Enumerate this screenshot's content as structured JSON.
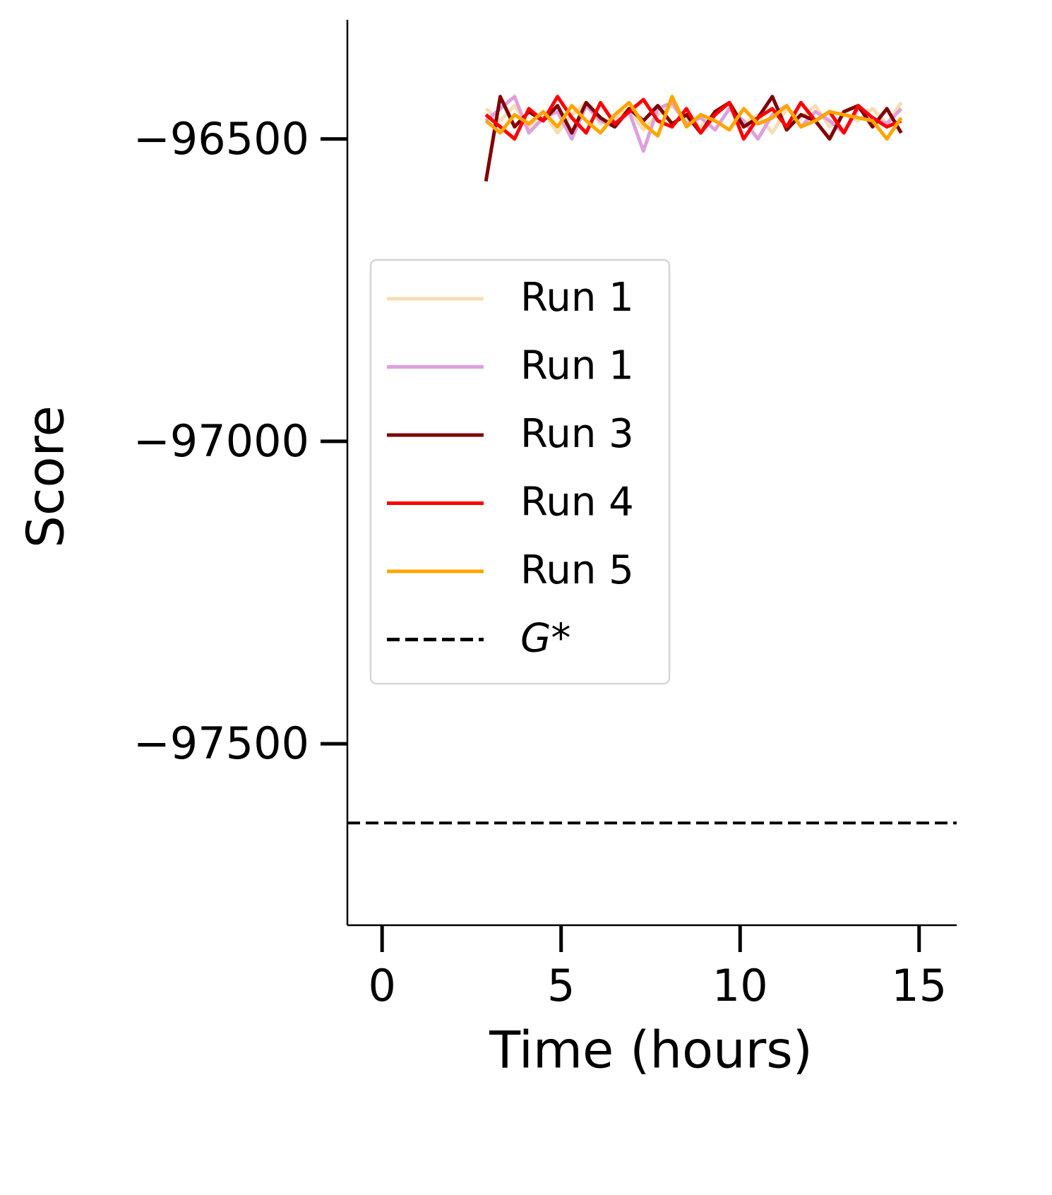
{
  "chart_data": {
    "type": "line",
    "xlabel": "Time (hours)",
    "ylabel": "Score",
    "x": [
      2.9,
      3.3,
      3.7,
      4.1,
      4.5,
      4.9,
      5.3,
      5.7,
      6.1,
      6.5,
      6.9,
      7.3,
      7.7,
      8.1,
      8.5,
      8.9,
      9.3,
      9.7,
      10.1,
      10.5,
      10.9,
      11.3,
      11.7,
      12.1,
      12.5,
      12.9,
      13.3,
      13.7,
      14.1,
      14.5
    ],
    "series": [
      {
        "name": "Run 1",
        "color": "#f5deb3",
        "values": [
          -96450,
          -96470,
          -96445,
          -96480,
          -96455,
          -96490,
          -96460,
          -96440,
          -96475,
          -96465,
          -96450,
          -96485,
          -96460,
          -96445,
          -96470,
          -96480,
          -96455,
          -96440,
          -96475,
          -96460,
          -96490,
          -96450,
          -96465,
          -96445,
          -96480,
          -96460,
          -96470,
          -96450,
          -96475,
          -96440
        ]
      },
      {
        "name": "Run 1",
        "color": "#dda0dd",
        "values": [
          -96470,
          -96450,
          -96430,
          -96490,
          -96465,
          -96455,
          -96500,
          -96445,
          -96470,
          -96480,
          -96455,
          -96520,
          -96450,
          -96440,
          -96475,
          -96465,
          -96485,
          -96450,
          -96470,
          -96500,
          -96460,
          -96445,
          -96480,
          -96455,
          -96470,
          -96490,
          -96450,
          -96465,
          -96475,
          -96450
        ]
      },
      {
        "name": "Run 3",
        "color": "#800000",
        "values": [
          -96570,
          -96430,
          -96480,
          -96455,
          -96470,
          -96445,
          -96490,
          -96440,
          -96465,
          -96480,
          -96450,
          -96470,
          -96445,
          -96475,
          -96460,
          -96490,
          -96455,
          -96440,
          -96480,
          -96465,
          -96430,
          -96485,
          -96460,
          -96470,
          -96500,
          -96455,
          -96445,
          -96480,
          -96450,
          -96490
        ]
      },
      {
        "name": "Run 4",
        "color": "#ff0000",
        "values": [
          -96460,
          -96480,
          -96500,
          -96450,
          -96470,
          -96430,
          -96465,
          -96490,
          -96440,
          -96475,
          -96455,
          -96435,
          -96470,
          -96480,
          -96450,
          -96490,
          -96460,
          -96440,
          -96500,
          -96465,
          -96450,
          -96480,
          -96440,
          -96470,
          -96455,
          -96490,
          -96445,
          -96465,
          -96480,
          -96470
        ]
      },
      {
        "name": "Run 5",
        "color": "#ffa500",
        "values": [
          -96470,
          -96490,
          -96460,
          -96475,
          -96455,
          -96480,
          -96445,
          -96470,
          -96490,
          -96460,
          -96440,
          -96475,
          -96495,
          -96430,
          -96480,
          -96460,
          -96470,
          -96485,
          -96450,
          -96475,
          -96465,
          -96445,
          -96480,
          -96470,
          -96455,
          -96460,
          -96465,
          -96470,
          -96500,
          -96465
        ]
      }
    ],
    "hline": {
      "name": "G*",
      "y": -97631,
      "color": "#000000"
    },
    "xlim": [
      -0.97,
      16.05
    ],
    "xticks": [
      0,
      5,
      10,
      15
    ],
    "ylim": [
      -97800,
      -96303
    ],
    "yticks": [
      {
        "value": -97500,
        "label": "−97500"
      },
      {
        "value": -97000,
        "label": "−97000"
      },
      {
        "value": -96500,
        "label": "−96500"
      }
    ]
  }
}
